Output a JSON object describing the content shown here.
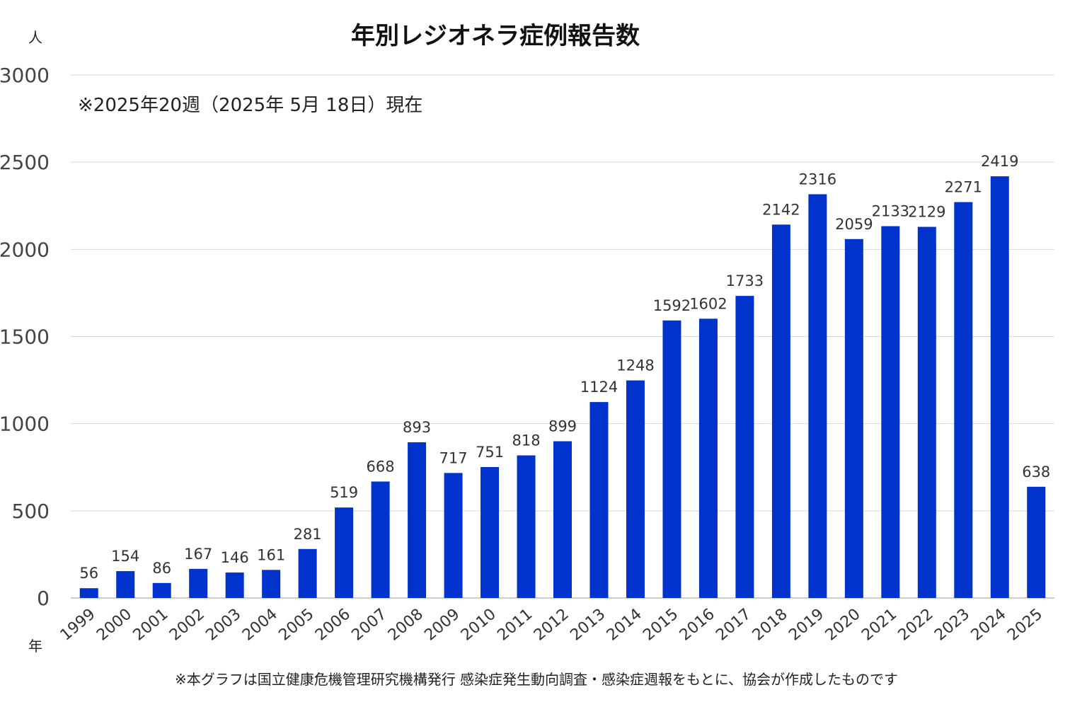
{
  "chart_data": {
    "type": "bar",
    "title": "年別レジオネラ症例報告数",
    "subtitle": "※2025年20週（2025年 5月 18日）現在",
    "ylabel": "人",
    "xlabel": "年",
    "ylim": [
      0,
      3000
    ],
    "yticks": [
      0,
      500,
      1000,
      1500,
      2000,
      2500,
      3000
    ],
    "grid": true,
    "bar_color": "#0033cc",
    "categories": [
      "1999",
      "2000",
      "2001",
      "2002",
      "2003",
      "2004",
      "2005",
      "2006",
      "2007",
      "2008",
      "2009",
      "2010",
      "2011",
      "2012",
      "2013",
      "2014",
      "2015",
      "2016",
      "2017",
      "2018",
      "2019",
      "2020",
      "2021",
      "2022",
      "2023",
      "2024",
      "2025"
    ],
    "values": [
      56,
      154,
      86,
      167,
      146,
      161,
      281,
      519,
      668,
      893,
      717,
      751,
      818,
      899,
      1124,
      1248,
      1592,
      1602,
      1733,
      2142,
      2316,
      2059,
      2133,
      2129,
      2271,
      2419,
      638
    ],
    "footnote": "※本グラフは国立健康危機管理研究機構発行 感染症発生動向調査・感染症週報をもとに、協会が作成したものです"
  }
}
